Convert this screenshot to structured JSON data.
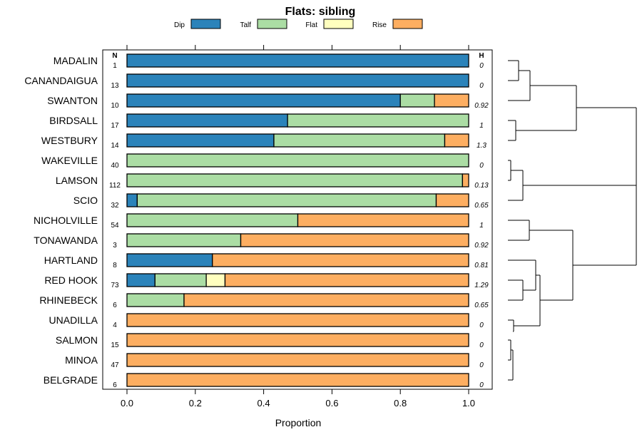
{
  "chart_data": {
    "type": "bar",
    "stacked": true,
    "orientation": "horizontal",
    "title": "Flats: sibling",
    "xlabel": "Proportion",
    "ylabel": "",
    "xlim": [
      0,
      1
    ],
    "xticks": [
      "0.0",
      "0.2",
      "0.4",
      "0.6",
      "0.8",
      "1.0"
    ],
    "n_header": "N",
    "h_header": "H",
    "legend": [
      {
        "name": "Dip",
        "color": "#2b83ba"
      },
      {
        "name": "Talf",
        "color": "#abdda4"
      },
      {
        "name": "Flat",
        "color": "#ffffbf"
      },
      {
        "name": "Rise",
        "color": "#fdae61"
      }
    ],
    "categories": [
      "MADALIN",
      "CANANDAIGUA",
      "SWANTON",
      "BIRDSALL",
      "WESTBURY",
      "WAKEVILLE",
      "LAMSON",
      "SCIO",
      "NICHOLVILLE",
      "TONAWANDA",
      "HARTLAND",
      "RED HOOK",
      "RHINEBECK",
      "UNADILLA",
      "SALMON",
      "MINOA",
      "BELGRADE"
    ],
    "n": [
      "1",
      "13",
      "10",
      "17",
      "14",
      "40",
      "112",
      "32",
      "54",
      "3",
      "8",
      "73",
      "6",
      "4",
      "15",
      "47",
      "6"
    ],
    "h": [
      "0",
      "0",
      "0.92",
      "1",
      "1.3",
      "0",
      "0.13",
      "0.65",
      "1",
      "0.92",
      "0.81",
      "1.29",
      "0.65",
      "0",
      "0",
      "0",
      "0"
    ],
    "series": [
      {
        "name": "Dip",
        "values": [
          1,
          1,
          0.8,
          0.47,
          0.43,
          0,
          0,
          0.03,
          0,
          0,
          0.25,
          0.082,
          0,
          0,
          0,
          0,
          0
        ]
      },
      {
        "name": "Talf",
        "values": [
          0,
          0,
          0.1,
          0.53,
          0.5,
          1,
          0.982,
          0.875,
          0.5,
          0.333,
          0,
          0.15,
          0.167,
          0,
          0,
          0,
          0
        ]
      },
      {
        "name": "Flat",
        "values": [
          0,
          0,
          0,
          0,
          0,
          0,
          0,
          0,
          0,
          0,
          0,
          0.055,
          0,
          0,
          0,
          0,
          0
        ]
      },
      {
        "name": "Rise",
        "values": [
          0,
          0,
          0.1,
          0,
          0.07,
          0,
          0.018,
          0.095,
          0.5,
          0.667,
          0.75,
          0.713,
          0.833,
          1,
          1,
          1,
          1
        ]
      }
    ]
  }
}
